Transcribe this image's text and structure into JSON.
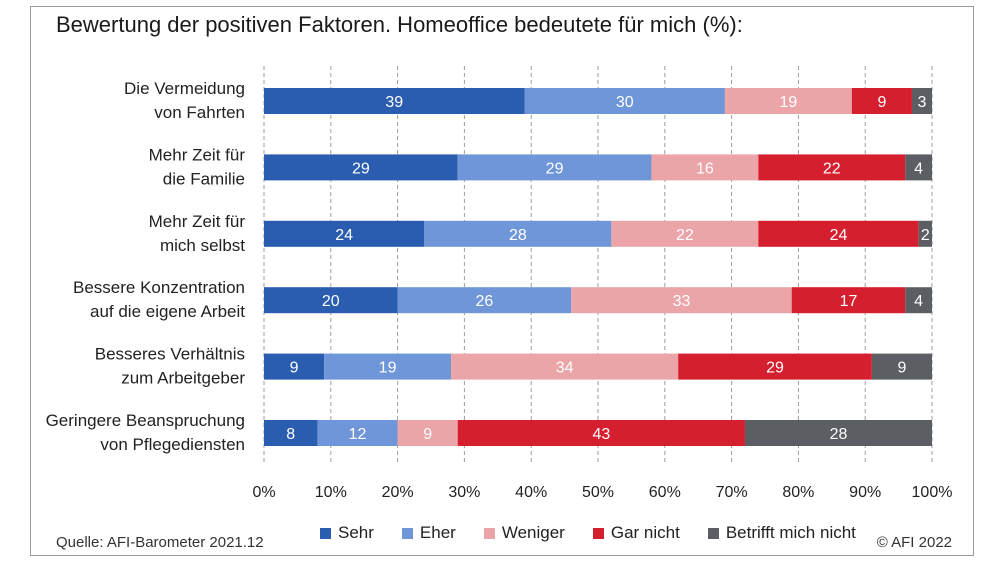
{
  "title": "Bewertung der positiven Faktoren. Homeoffice bedeutete für mich (%):",
  "source": "Quelle: AFI-Barometer 2021.12",
  "copyright": "© AFI 2022",
  "chart_data": {
    "type": "bar",
    "orientation": "horizontal",
    "stacked": true,
    "title": "Bewertung der positiven Faktoren. Homeoffice bedeutete für mich (%):",
    "categories": [
      [
        "Die Vermeidung",
        "von Fahrten"
      ],
      [
        "Mehr Zeit für",
        "die Familie"
      ],
      [
        "Mehr Zeit für",
        "mich selbst"
      ],
      [
        "Bessere Konzentration",
        "auf die eigene Arbeit"
      ],
      [
        "Besseres Verhältnis",
        "zum Arbeitgeber"
      ],
      [
        "Geringere Beanspruchung",
        "von Pflegediensten"
      ]
    ],
    "series": [
      {
        "name": "Sehr",
        "color": "#2a5db0",
        "label_color": "#ffffff",
        "values": [
          39,
          29,
          24,
          20,
          9,
          8
        ]
      },
      {
        "name": "Eher",
        "color": "#6f96d8",
        "label_color": "#ffffff",
        "values": [
          30,
          29,
          28,
          26,
          19,
          12
        ]
      },
      {
        "name": "Weniger",
        "color": "#eba5a8",
        "label_color": "#ffffff",
        "values": [
          19,
          16,
          22,
          33,
          34,
          9
        ]
      },
      {
        "name": "Gar nicht",
        "color": "#d61f2e",
        "label_color": "#ffffff",
        "values": [
          9,
          22,
          24,
          17,
          29,
          43
        ]
      },
      {
        "name": "Betrifft mich nicht",
        "color": "#5b5e63",
        "label_color": "#ffffff",
        "values": [
          3,
          4,
          2,
          4,
          9,
          28
        ]
      }
    ],
    "xlim": [
      0,
      100
    ],
    "xticks": [
      "0%",
      "10%",
      "20%",
      "30%",
      "40%",
      "50%",
      "60%",
      "70%",
      "80%",
      "90%",
      "100%"
    ],
    "grid": "vertical dashed",
    "legend": "bottom"
  }
}
